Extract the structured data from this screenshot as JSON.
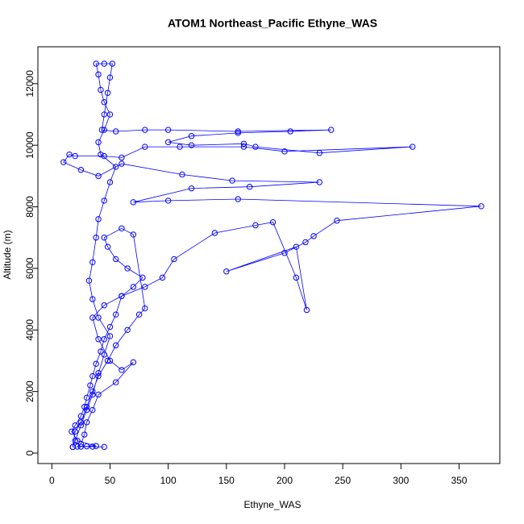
{
  "chart_data": {
    "type": "line",
    "title": "ATOM1 Northeast_Pacific Ethyne_WAS",
    "x_label": "Ethyne_WAS",
    "y_label": "Altitude (m)",
    "xlim": [
      -12,
      385
    ],
    "ylim": [
      -340,
      13200
    ],
    "xticks": [
      0,
      50,
      100,
      150,
      200,
      250,
      300,
      350
    ],
    "yticks": [
      0,
      2000,
      4000,
      6000,
      8000,
      10000,
      12000
    ],
    "x": [
      18,
      25,
      30,
      38,
      22,
      17,
      20,
      25,
      28,
      30,
      33,
      35,
      38,
      42,
      45,
      50,
      55,
      60,
      70,
      78,
      65,
      55,
      48,
      45,
      60,
      70,
      80,
      75,
      65,
      55,
      48,
      40,
      35,
      30,
      25,
      20,
      18,
      20,
      25,
      30,
      35,
      40,
      45,
      50,
      40,
      35,
      32,
      35,
      38,
      40,
      45,
      50,
      55,
      42,
      40,
      45,
      50,
      45,
      42,
      40,
      38,
      45,
      52,
      50,
      48,
      45,
      43,
      55,
      80,
      100,
      160,
      240,
      205,
      160,
      120,
      100,
      120,
      165,
      175,
      230,
      310,
      200,
      165,
      110,
      80,
      60,
      45,
      20,
      15,
      10,
      25,
      40,
      60,
      112,
      155,
      230,
      170,
      120,
      70,
      100,
      160,
      369,
      245,
      225,
      218,
      200,
      150,
      210,
      219,
      210,
      190,
      175,
      140,
      105,
      95,
      80,
      60,
      45,
      35,
      40,
      50,
      60,
      70,
      55,
      40,
      35,
      30,
      28,
      25,
      22,
      35,
      45
    ],
    "series": [
      {
        "name": "Ethyne_WAS",
        "color": "#0000ff",
        "values": [
          200,
          210,
          220,
          230,
          400,
          700,
          900,
          1200,
          1500,
          1800,
          2200,
          2500,
          2900,
          3300,
          3700,
          4100,
          4500,
          5100,
          5400,
          5700,
          6000,
          6300,
          6700,
          7000,
          7300,
          7100,
          4700,
          4500,
          4000,
          3500,
          3000,
          2500,
          2000,
          1500,
          1000,
          700,
          200,
          400,
          900,
          1400,
          1900,
          2600,
          3200,
          3800,
          4400,
          5000,
          5600,
          6200,
          7000,
          7600,
          8200,
          8800,
          9300,
          9700,
          10100,
          10500,
          11000,
          11400,
          11800,
          12300,
          12650,
          12650,
          12650,
          12200,
          11700,
          11000,
          10500,
          10450,
          10500,
          10500,
          10450,
          10500,
          10450,
          10400,
          10300,
          10100,
          10000,
          10050,
          9950,
          9750,
          9950,
          9800,
          9950,
          9950,
          9950,
          9600,
          9650,
          9650,
          9700,
          9450,
          9200,
          9000,
          9400,
          9050,
          8850,
          8800,
          8650,
          8600,
          8150,
          8200,
          8250,
          8020,
          7550,
          7050,
          6850,
          6500,
          5900,
          6700,
          4650,
          5700,
          7500,
          7400,
          7150,
          6300,
          5700,
          5400,
          5100,
          4800,
          4400,
          3700,
          3000,
          2700,
          2950,
          2300,
          1900,
          1400,
          1000,
          600,
          300,
          210,
          210,
          200
        ]
      }
    ]
  }
}
